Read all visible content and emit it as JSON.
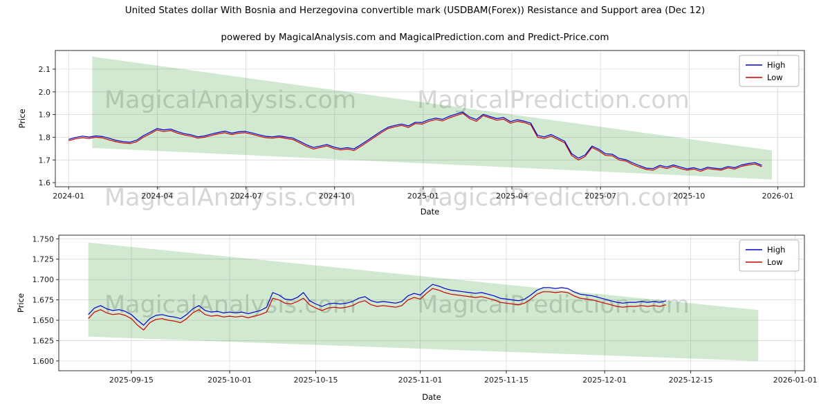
{
  "figure": {
    "title": "United States dollar With Bosnia and Herzegovina convertible mark (USDBAM(Forex)) Resistance and Support area (Dec 12)",
    "subtitle": "powered by MagicalAnalysis.com and MagicalPrediction.com and Predict-Price.com",
    "background": "#ffffff"
  },
  "watermarks": {
    "analysis": "MagicalAnalysis.com",
    "prediction": "MagicalPrediction.com",
    "color": "#b4b4b4",
    "opacity": 0.55
  },
  "legend": {
    "entries": [
      {
        "label": "High",
        "color": "#0000cd"
      },
      {
        "label": "Low",
        "color": "#cc0000"
      }
    ]
  },
  "chart_data": [
    {
      "type": "line",
      "title": "",
      "xlabel": "Date",
      "ylabel": "Price",
      "x_unit": "months since 2024-01",
      "xlim": [
        -0.45,
        24.9
      ],
      "ylim": [
        1.582,
        2.182
      ],
      "xticks": [
        0,
        3,
        6,
        9,
        12,
        15,
        18,
        21,
        24
      ],
      "xtick_labels": [
        "2024-01",
        "2024-04",
        "2024-07",
        "2024-10",
        "2025-01",
        "2025-04",
        "2025-07",
        "2025-10",
        "2026-01"
      ],
      "yticks": [
        1.6,
        1.7,
        1.8,
        1.9,
        2.0,
        2.1
      ],
      "ytick_labels": [
        "1.6",
        "1.7",
        "1.8",
        "1.9",
        "2.0",
        "2.1"
      ],
      "grid": true,
      "legend_position": "upper right",
      "x_start": 0,
      "x_step": 0.23,
      "series": [
        {
          "name": "High",
          "color": "#0000cd",
          "values": [
            1.791,
            1.799,
            1.805,
            1.801,
            1.806,
            1.803,
            1.795,
            1.786,
            1.781,
            1.778,
            1.787,
            1.807,
            1.822,
            1.838,
            1.832,
            1.836,
            1.825,
            1.816,
            1.811,
            1.802,
            1.806,
            1.814,
            1.821,
            1.827,
            1.818,
            1.824,
            1.826,
            1.819,
            1.811,
            1.804,
            1.802,
            1.806,
            1.801,
            1.796,
            1.782,
            1.767,
            1.755,
            1.761,
            1.768,
            1.757,
            1.75,
            1.754,
            1.749,
            1.767,
            1.787,
            1.807,
            1.827,
            1.844,
            1.852,
            1.858,
            1.85,
            1.866,
            1.865,
            1.877,
            1.884,
            1.879,
            1.892,
            1.902,
            1.911,
            1.889,
            1.878,
            1.901,
            1.891,
            1.882,
            1.887,
            1.869,
            1.877,
            1.871,
            1.862,
            1.808,
            1.802,
            1.812,
            1.797,
            1.782,
            1.728,
            1.708,
            1.722,
            1.761,
            1.747,
            1.727,
            1.725,
            1.707,
            1.701,
            1.687,
            1.675,
            1.664,
            1.662,
            1.676,
            1.669,
            1.678,
            1.669,
            1.661,
            1.666,
            1.657,
            1.668,
            1.664,
            1.661,
            1.671,
            1.666,
            1.678,
            1.684,
            1.688,
            1.676
          ]
        },
        {
          "name": "Low",
          "color": "#cc0000",
          "values": [
            1.785,
            1.793,
            1.798,
            1.795,
            1.8,
            1.797,
            1.788,
            1.78,
            1.775,
            1.772,
            1.78,
            1.8,
            1.815,
            1.832,
            1.825,
            1.83,
            1.818,
            1.81,
            1.805,
            1.796,
            1.8,
            1.808,
            1.815,
            1.82,
            1.812,
            1.818,
            1.82,
            1.813,
            1.805,
            1.798,
            1.796,
            1.8,
            1.795,
            1.79,
            1.775,
            1.76,
            1.748,
            1.755,
            1.762,
            1.75,
            1.744,
            1.748,
            1.742,
            1.76,
            1.78,
            1.8,
            1.82,
            1.838,
            1.846,
            1.852,
            1.843,
            1.86,
            1.858,
            1.87,
            1.878,
            1.872,
            1.885,
            1.895,
            1.905,
            1.882,
            1.87,
            1.895,
            1.885,
            1.875,
            1.88,
            1.862,
            1.87,
            1.865,
            1.855,
            1.8,
            1.795,
            1.805,
            1.79,
            1.775,
            1.72,
            1.7,
            1.715,
            1.755,
            1.74,
            1.72,
            1.718,
            1.7,
            1.695,
            1.68,
            1.668,
            1.658,
            1.655,
            1.67,
            1.662,
            1.672,
            1.662,
            1.655,
            1.66,
            1.65,
            1.662,
            1.658,
            1.655,
            1.665,
            1.66,
            1.672,
            1.678,
            1.682,
            1.67
          ]
        }
      ],
      "band": {
        "name": "resistance-support-area",
        "x": [
          0.8,
          23.8
        ],
        "upper": [
          2.155,
          1.742
        ],
        "lower": [
          1.753,
          1.614
        ],
        "color": "#008000",
        "opacity": 0.18
      }
    },
    {
      "type": "line",
      "title": "",
      "xlabel": "Date",
      "ylabel": "Price",
      "x_unit": "days since 2025-09-01",
      "xlim": [
        2.2,
        123.5
      ],
      "ylim": [
        1.588,
        1.7545
      ],
      "xticks": [
        14,
        30,
        44,
        61,
        75,
        91,
        105,
        122
      ],
      "xtick_labels": [
        "2025-09-15",
        "2025-10-01",
        "2025-10-15",
        "2025-11-01",
        "2025-11-15",
        "2025-12-01",
        "2025-12-15",
        "2026-01-01"
      ],
      "yticks": [
        1.6,
        1.625,
        1.65,
        1.675,
        1.7,
        1.725,
        1.75
      ],
      "ytick_labels": [
        "1.600",
        "1.625",
        "1.650",
        "1.675",
        "1.700",
        "1.725",
        "1.750"
      ],
      "grid": true,
      "legend_position": "upper right",
      "x_start": 7,
      "x_step": 1,
      "series": [
        {
          "name": "High",
          "color": "#0000cd",
          "values": [
            1.657,
            1.665,
            1.668,
            1.664,
            1.662,
            1.663,
            1.661,
            1.657,
            1.65,
            1.644,
            1.652,
            1.656,
            1.657,
            1.655,
            1.654,
            1.652,
            1.657,
            1.664,
            1.668,
            1.662,
            1.66,
            1.661,
            1.659,
            1.66,
            1.659,
            1.66,
            1.658,
            1.66,
            1.662,
            1.666,
            1.684,
            1.681,
            1.676,
            1.675,
            1.678,
            1.684,
            1.674,
            1.67,
            1.667,
            1.67,
            1.671,
            1.67,
            1.671,
            1.673,
            1.677,
            1.679,
            1.674,
            1.672,
            1.673,
            1.672,
            1.671,
            1.673,
            1.68,
            1.683,
            1.681,
            1.688,
            1.694,
            1.692,
            1.689,
            1.687,
            1.686,
            1.685,
            1.684,
            1.683,
            1.684,
            1.682,
            1.68,
            1.677,
            1.676,
            1.675,
            1.674,
            1.676,
            1.681,
            1.687,
            1.69,
            1.69,
            1.689,
            1.69,
            1.689,
            1.685,
            1.682,
            1.681,
            1.68,
            1.678,
            1.676,
            1.674,
            1.672,
            1.671,
            1.672,
            1.672,
            1.673,
            1.672,
            1.673,
            1.672,
            1.674
          ]
        },
        {
          "name": "Low",
          "color": "#cc0000",
          "values": [
            1.652,
            1.66,
            1.663,
            1.659,
            1.657,
            1.658,
            1.656,
            1.652,
            1.644,
            1.638,
            1.647,
            1.651,
            1.652,
            1.65,
            1.649,
            1.647,
            1.652,
            1.659,
            1.663,
            1.657,
            1.655,
            1.656,
            1.654,
            1.655,
            1.654,
            1.655,
            1.653,
            1.655,
            1.657,
            1.66,
            1.677,
            1.675,
            1.671,
            1.67,
            1.673,
            1.677,
            1.669,
            1.665,
            1.662,
            1.665,
            1.666,
            1.665,
            1.666,
            1.668,
            1.672,
            1.674,
            1.669,
            1.667,
            1.668,
            1.667,
            1.666,
            1.668,
            1.675,
            1.678,
            1.676,
            1.683,
            1.689,
            1.687,
            1.684,
            1.682,
            1.681,
            1.68,
            1.679,
            1.678,
            1.679,
            1.677,
            1.675,
            1.672,
            1.671,
            1.67,
            1.669,
            1.671,
            1.676,
            1.682,
            1.685,
            1.685,
            1.684,
            1.685,
            1.684,
            1.68,
            1.677,
            1.676,
            1.675,
            1.673,
            1.671,
            1.669,
            1.667,
            1.666,
            1.667,
            1.667,
            1.668,
            1.667,
            1.668,
            1.667,
            1.669
          ]
        }
      ],
      "band": {
        "name": "resistance-support-area",
        "x": [
          7,
          116
        ],
        "upper": [
          1.7455,
          1.6625
        ],
        "lower": [
          1.63,
          1.6
        ],
        "color": "#008000",
        "opacity": 0.18
      }
    }
  ]
}
